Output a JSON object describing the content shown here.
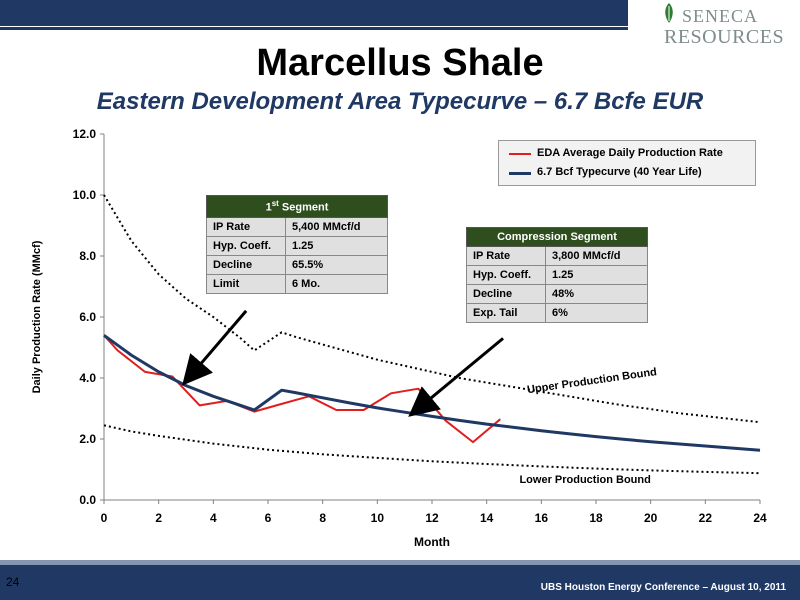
{
  "header": {
    "logo_line1": "SENECA",
    "logo_line2": "RESOURCES",
    "title": "Marcellus Shale",
    "subtitle": "Eastern Development Area Typecurve – 6.7 Bcfe EUR"
  },
  "footer": {
    "page_number": "24",
    "text": "UBS Houston Energy Conference – August 10, 2011"
  },
  "colors": {
    "navy": "#1f3864",
    "red": "#e01e1e",
    "dark_green": "#2e4e1e"
  },
  "segment_tables": [
    {
      "title": "1st Segment",
      "rows": [
        {
          "key": "IP Rate",
          "value": "5,400 MMcf/d"
        },
        {
          "key": "Hyp. Coeff.",
          "value": "1.25"
        },
        {
          "key": "Decline",
          "value": "65.5%"
        },
        {
          "key": "Limit",
          "value": "6 Mo."
        }
      ]
    },
    {
      "title": "Compression Segment",
      "rows": [
        {
          "key": "IP Rate",
          "value": "3,800 MMcf/d"
        },
        {
          "key": "Hyp. Coeff.",
          "value": "1.25"
        },
        {
          "key": "Decline",
          "value": "48%"
        },
        {
          "key": "Exp. Tail",
          "value": "6%"
        }
      ]
    }
  ],
  "chart_data": {
    "type": "line",
    "title": "",
    "xlabel": "Month",
    "ylabel": "Daily Production Rate (MMcf)",
    "xlim": [
      0,
      24
    ],
    "ylim": [
      0,
      12
    ],
    "x_ticks": [
      0,
      2,
      4,
      6,
      8,
      10,
      12,
      14,
      16,
      18,
      20,
      22,
      24
    ],
    "y_ticks": [
      "0.0",
      "2.0",
      "4.0",
      "6.0",
      "8.0",
      "10.0",
      "12.0"
    ],
    "legend_position": "top-right",
    "series": [
      {
        "name": "EDA Average Daily Production Rate",
        "color": "#e01e1e",
        "style": "solid",
        "x": [
          0,
          0.5,
          1.5,
          2.5,
          3.5,
          4.5,
          5.5,
          6.5,
          7.5,
          8.5,
          9.5,
          10.5,
          11.5,
          12.5,
          13.5,
          14.5
        ],
        "y": [
          5.4,
          4.9,
          4.2,
          4.05,
          3.1,
          3.25,
          2.9,
          3.15,
          3.4,
          2.95,
          2.95,
          3.5,
          3.65,
          2.6,
          1.9,
          2.65
        ]
      },
      {
        "name": "6.7 Bcf Typecurve (40 Year Life)",
        "color": "#1f3864",
        "style": "solid",
        "x": [
          0,
          1,
          2,
          3,
          4,
          5,
          5.5,
          6.5,
          7,
          8,
          9,
          10,
          11,
          12,
          13,
          14,
          15,
          16,
          17,
          18,
          19,
          20,
          21,
          22,
          23,
          24
        ],
        "y": [
          5.4,
          4.75,
          4.2,
          3.75,
          3.4,
          3.1,
          2.95,
          3.6,
          3.52,
          3.35,
          3.18,
          3.02,
          2.88,
          2.74,
          2.61,
          2.49,
          2.38,
          2.27,
          2.17,
          2.08,
          1.99,
          1.91,
          1.84,
          1.77,
          1.7,
          1.63
        ]
      },
      {
        "name": "Upper Production Bound",
        "color": "#000000",
        "style": "dotted",
        "x": [
          0,
          1,
          2,
          3,
          4,
          5,
          5.5,
          6.5,
          7,
          8,
          9,
          10,
          11,
          12,
          13,
          14,
          15,
          16,
          17,
          18,
          19,
          20,
          21,
          22,
          23,
          24
        ],
        "y": [
          10.0,
          8.5,
          7.4,
          6.6,
          6.0,
          5.3,
          4.9,
          5.5,
          5.35,
          5.1,
          4.85,
          4.6,
          4.4,
          4.2,
          4.0,
          3.85,
          3.7,
          3.55,
          3.4,
          3.25,
          3.1,
          2.98,
          2.85,
          2.75,
          2.65,
          2.55
        ]
      },
      {
        "name": "Lower Production Bound",
        "color": "#000000",
        "style": "dotted",
        "x": [
          0,
          1,
          2,
          4,
          6,
          8,
          10,
          12,
          14,
          16,
          18,
          20,
          22,
          24
        ],
        "y": [
          2.45,
          2.25,
          2.1,
          1.85,
          1.65,
          1.5,
          1.38,
          1.27,
          1.18,
          1.1,
          1.03,
          0.97,
          0.92,
          0.88
        ]
      }
    ],
    "annotations": [
      {
        "text": "Upper Production Bound",
        "x": 15.5,
        "y": 3.5,
        "rotation": -8
      },
      {
        "text": "Lower Production Bound",
        "x": 15.2,
        "y": 0.55,
        "rotation": 0
      }
    ],
    "arrows": [
      {
        "from_x": 5.2,
        "from_y": 6.2,
        "to_x": 3.0,
        "to_y": 3.9
      },
      {
        "from_x": 14.6,
        "from_y": 5.3,
        "to_x": 11.3,
        "to_y": 2.85
      }
    ]
  }
}
